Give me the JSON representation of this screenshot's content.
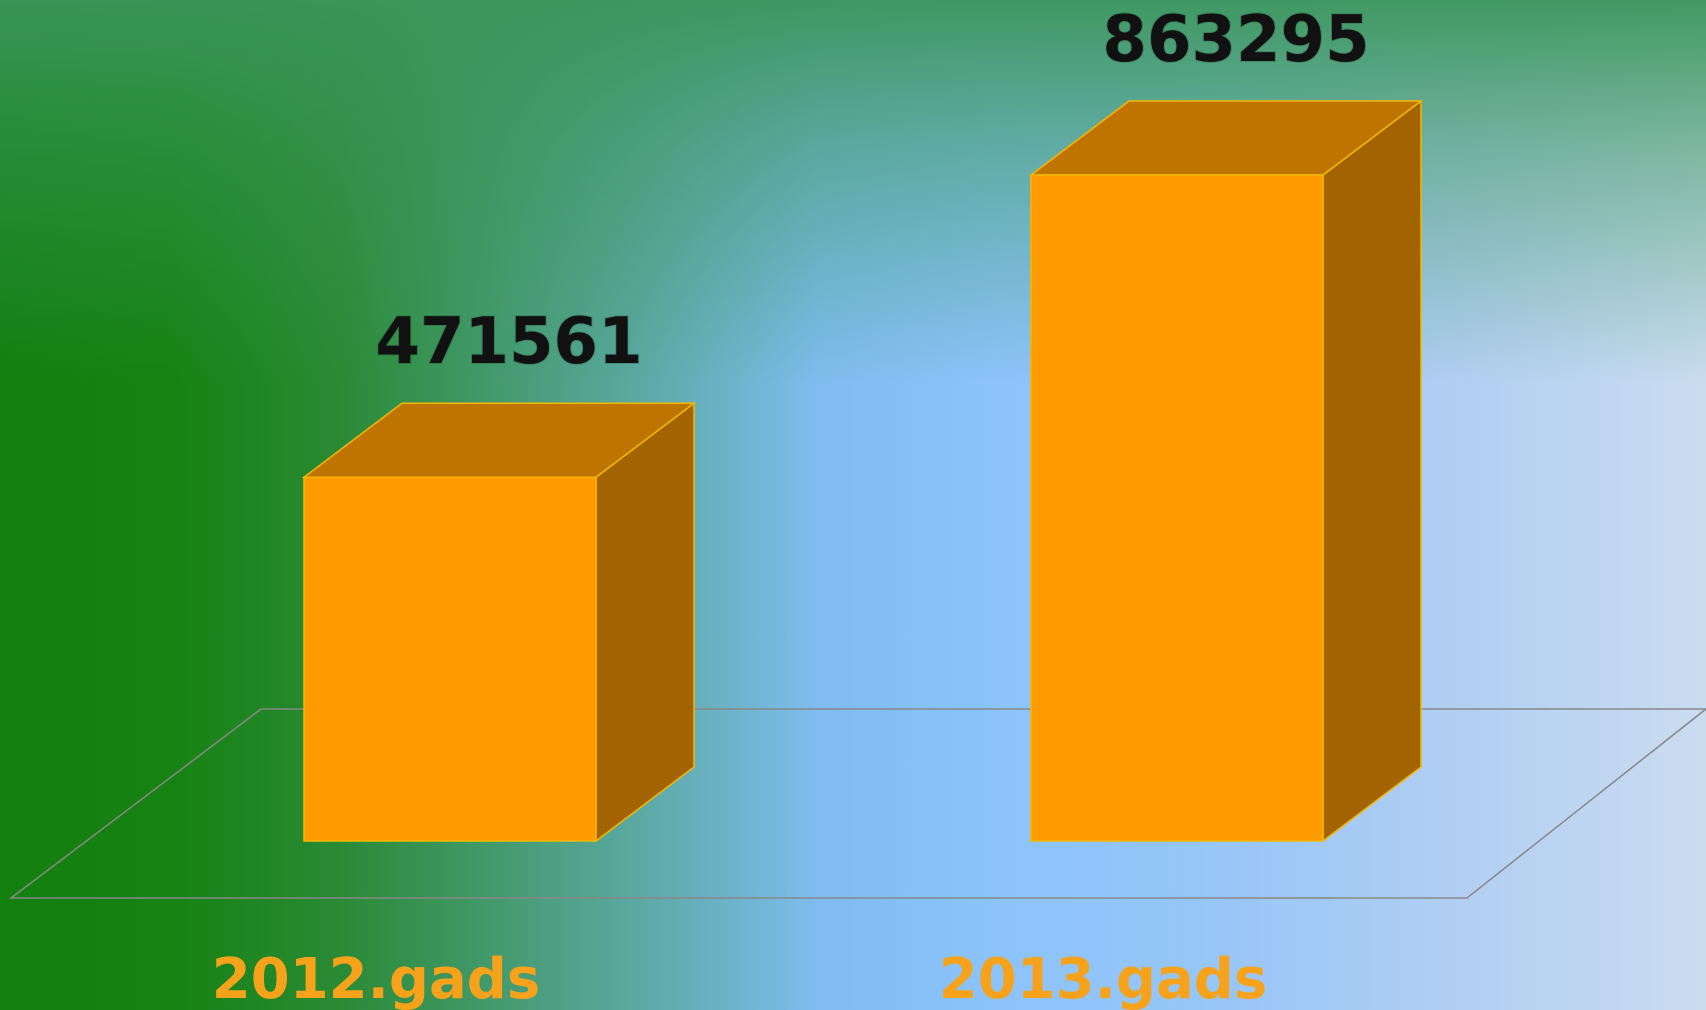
{
  "chart_data": {
    "type": "bar3d",
    "categories": [
      "2012.gads",
      "2013.gads"
    ],
    "values": [
      471561,
      863295
    ],
    "color": "#ff9a00"
  }
}
